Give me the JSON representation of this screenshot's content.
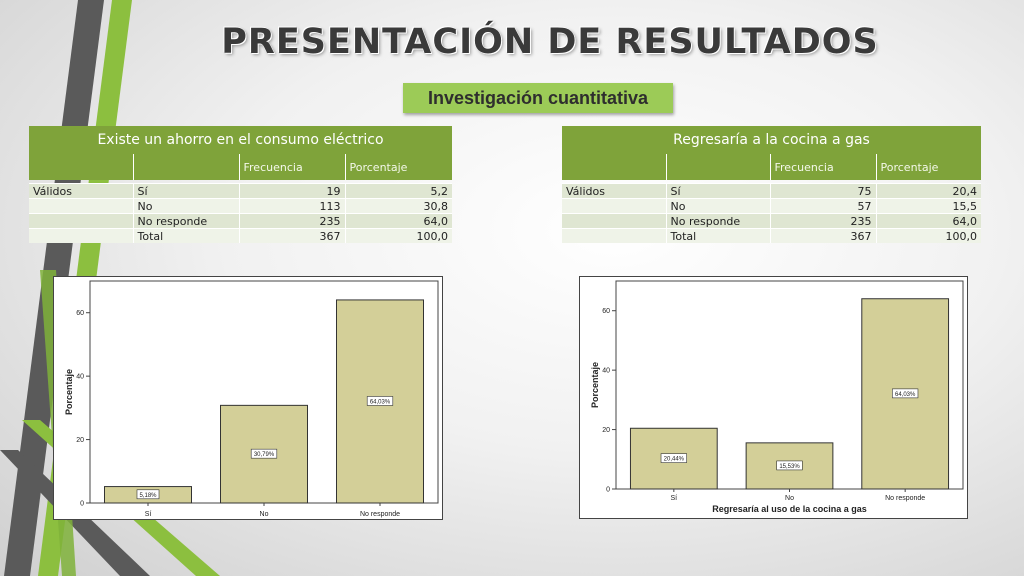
{
  "page": {
    "title": "PRESENTACIÓN DE RESULTADOS",
    "subtitle": "Investigación cuantitativa"
  },
  "colors": {
    "accent": "#7fa33a",
    "subtitle_bg": "#9ccb57",
    "bar_fill": "#d3cf98",
    "deco_gray": "#5a5a5a",
    "deco_green": "#8cbf3f"
  },
  "tables": [
    {
      "title": "Existe un ahorro en el consumo eléctrico",
      "col_frecuencia": "Frecuencia",
      "col_porcentaje": "Porcentaje",
      "group_label": "Válidos",
      "rows": [
        {
          "label": "Sí",
          "frecuencia": "19",
          "porcentaje": "5,2"
        },
        {
          "label": "No",
          "frecuencia": "113",
          "porcentaje": "30,8"
        },
        {
          "label": "No responde",
          "frecuencia": "235",
          "porcentaje": "64,0"
        },
        {
          "label": "Total",
          "frecuencia": "367",
          "porcentaje": "100,0"
        }
      ]
    },
    {
      "title": "Regresaría a la cocina a gas",
      "col_frecuencia": "Frecuencia",
      "col_porcentaje": "Porcentaje",
      "group_label": "Válidos",
      "rows": [
        {
          "label": "Sí",
          "frecuencia": "75",
          "porcentaje": "20,4"
        },
        {
          "label": "No",
          "frecuencia": "57",
          "porcentaje": "15,5"
        },
        {
          "label": "No responde",
          "frecuencia": "235",
          "porcentaje": "64,0"
        },
        {
          "label": "Total",
          "frecuencia": "367",
          "porcentaje": "100,0"
        }
      ]
    }
  ],
  "chart_data": [
    {
      "type": "bar",
      "categories": [
        "Sí",
        "No",
        "No responde"
      ],
      "values": [
        5.18,
        30.79,
        64.03
      ],
      "data_labels": [
        "5,18%",
        "30,79%",
        "64,03%"
      ],
      "ylabel": "Porcentaje",
      "xlabel": "",
      "ylim": [
        0,
        70
      ],
      "yticks": [
        0,
        20,
        40,
        60
      ],
      "grid": false
    },
    {
      "type": "bar",
      "categories": [
        "Sí",
        "No",
        "No responde"
      ],
      "values": [
        20.44,
        15.53,
        64.03
      ],
      "data_labels": [
        "20,44%",
        "15,53%",
        "64,03%"
      ],
      "ylabel": "Porcentaje",
      "xlabel": "Regresaría al uso de la cocina a gas",
      "ylim": [
        0,
        70
      ],
      "yticks": [
        0,
        20,
        40,
        60
      ],
      "grid": false
    }
  ]
}
